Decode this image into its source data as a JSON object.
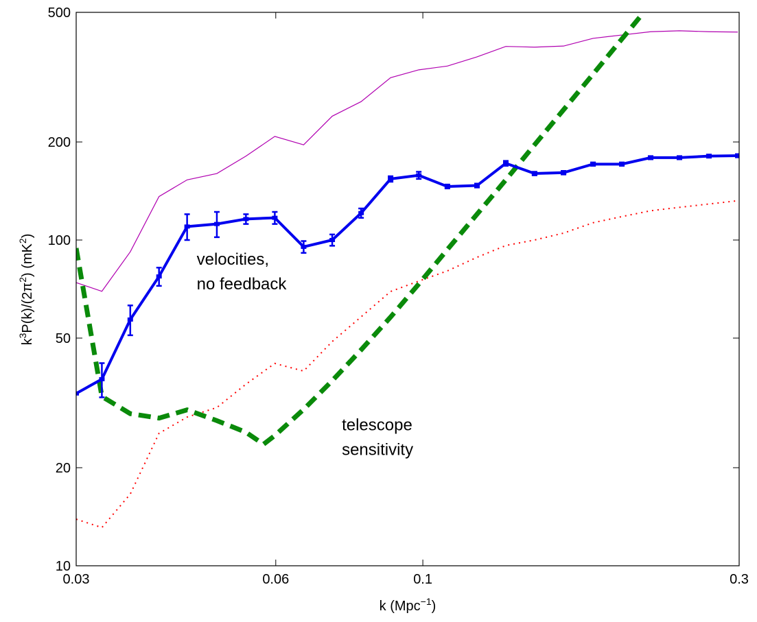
{
  "chart_data": {
    "type": "line",
    "xlog": true,
    "ylog": true,
    "xlabel": [
      "k (Mpc",
      "−1",
      ")"
    ],
    "ylabel": [
      "k",
      "3",
      "P(k)/(2π",
      "2",
      ") (mK",
      "2",
      ")"
    ],
    "xlim": [
      0.03,
      0.3
    ],
    "xticks": [
      0.03,
      0.06,
      0.1,
      0.3
    ],
    "ylim": [
      10,
      500
    ],
    "yticks": [
      10,
      20,
      50,
      100,
      200,
      500
    ],
    "annotations": [
      {
        "lines": [
          "velocities,",
          "no feedback"
        ],
        "x": 0.0441,
        "y": 100
      },
      {
        "lines": [
          "telescope",
          "sensitivity"
        ],
        "x": 0.073,
        "y": 31
      }
    ],
    "series": [
      {
        "color": "#b000b0",
        "style": "solid",
        "width": 1.2,
        "x": [
          0.03,
          0.0328,
          0.0362,
          0.04,
          0.0441,
          0.0489,
          0.0541,
          0.0598,
          0.0661,
          0.073,
          0.0807,
          0.0894,
          0.0986,
          0.1089,
          0.1207,
          0.1334,
          0.1474,
          0.163,
          0.1806,
          0.1996,
          0.2206,
          0.2438,
          0.2701,
          0.2986
        ],
        "values": [
          74,
          69.6,
          92,
          136,
          153,
          160,
          181,
          208,
          196,
          240,
          266,
          315,
          333,
          342,
          365,
          393,
          391,
          394,
          416,
          426,
          436,
          439,
          436,
          435
        ]
      },
      {
        "color": "#ff0000",
        "style": "dotted",
        "width": 2,
        "x": [
          0.03,
          0.0328,
          0.0362,
          0.04,
          0.0441,
          0.0489,
          0.0541,
          0.0598,
          0.0661,
          0.073,
          0.0807,
          0.0894,
          0.0986,
          0.1089,
          0.1207,
          0.1334,
          0.1474,
          0.163,
          0.1806,
          0.1996,
          0.2206,
          0.2438,
          0.2701,
          0.2986
        ],
        "values": [
          13.9,
          13.1,
          16.6,
          25.5,
          28.6,
          30.6,
          36.1,
          41.8,
          39.6,
          48.8,
          58.1,
          69.5,
          74.8,
          80.4,
          88.5,
          96.2,
          100,
          105,
          113,
          118,
          123,
          126,
          129,
          132
        ]
      },
      {
        "color": "#0a8a0a",
        "style": "dashed",
        "width": 7,
        "x": [
          0.03,
          0.0328,
          0.0362,
          0.04,
          0.0441,
          0.0489,
          0.0541,
          0.0575,
          0.0598,
          0.0661,
          0.073,
          0.0807,
          0.0894,
          0.0986,
          0.1089,
          0.1207,
          0.1334,
          0.1474,
          0.163,
          0.1806,
          0.1996,
          0.2154
        ],
        "values": [
          94.4,
          33.1,
          29.3,
          28.4,
          30.1,
          27.9,
          25.7,
          23.6,
          25.1,
          30.2,
          37,
          46,
          58,
          73.3,
          93.5,
          120,
          153,
          196,
          251,
          323,
          414,
          500
        ]
      },
      {
        "color": "#0000ee",
        "style": "solid",
        "width": 4,
        "markers": true,
        "x": [
          0.03,
          0.0328,
          0.0362,
          0.04,
          0.0441,
          0.0489,
          0.0541,
          0.0598,
          0.0661,
          0.073,
          0.0807,
          0.0894,
          0.0986,
          0.1089,
          0.1207,
          0.1334,
          0.1474,
          0.163,
          0.1806,
          0.1996,
          0.2206,
          0.2438,
          0.2701,
          0.2986
        ],
        "values": [
          33.8,
          37.4,
          57,
          77.3,
          110,
          112,
          116,
          117,
          95.3,
          100,
          121,
          154,
          158,
          146,
          147,
          172,
          160,
          161,
          171,
          171,
          179,
          179,
          181,
          181.5
        ],
        "errors": [
          0,
          4.5,
          6,
          5,
          10,
          10,
          4,
          5,
          4,
          4,
          4,
          3,
          4,
          2,
          2,
          3,
          2,
          2,
          2,
          2,
          2,
          2,
          2,
          2
        ]
      }
    ]
  }
}
